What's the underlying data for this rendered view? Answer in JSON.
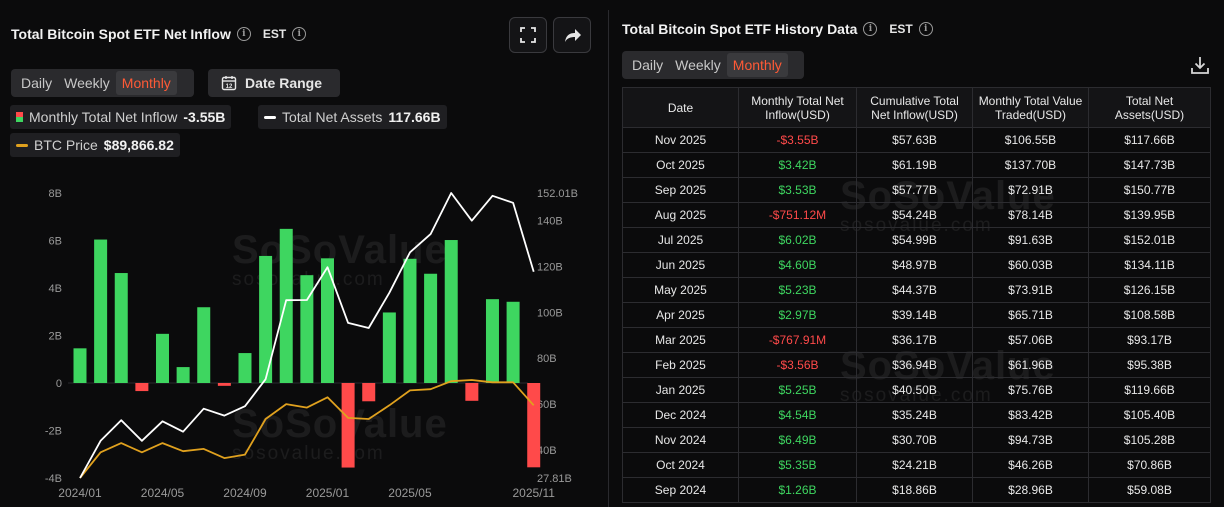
{
  "left_panel": {
    "title": "Total Bitcoin Spot ETF Net Inflow",
    "timezone": "EST",
    "tabs": [
      {
        "label": "Daily",
        "active": false
      },
      {
        "label": "Weekly",
        "active": false
      },
      {
        "label": "Monthly",
        "active": true
      }
    ],
    "date_range_label": "Date Range",
    "legend": {
      "inflow_label": "Monthly Total Net Inflow",
      "inflow_value": "-3.55B",
      "assets_label": "Total Net Assets",
      "assets_value": "117.66B",
      "btc_label": "BTC Price",
      "btc_value": "$89,866.82"
    },
    "watermark": {
      "brand": "SoSoValue",
      "domain": "sosovalue.com"
    }
  },
  "chart_data": {
    "type": "bar",
    "categories": [
      "2024/01",
      "2024/02",
      "2024/03",
      "2024/04",
      "2024/05",
      "2024/06",
      "2024/07",
      "2024/08",
      "2024/09",
      "2024/10",
      "2024/11",
      "2024/12",
      "2025/01",
      "2025/02",
      "2025/03",
      "2025/04",
      "2025/05",
      "2025/06",
      "2025/07",
      "2025/08",
      "2025/09",
      "2025/10",
      "2025/11"
    ],
    "x_tick_labels": [
      "2024/01",
      "2024/05",
      "2024/09",
      "2025/01",
      "2025/05",
      "2025/11"
    ],
    "series": [
      {
        "name": "Monthly Total Net Inflow",
        "axis": "left",
        "kind": "bar",
        "values": [
          1.46,
          6.04,
          4.63,
          -0.34,
          2.07,
          0.67,
          3.19,
          -0.12,
          1.26,
          5.35,
          6.49,
          4.54,
          5.25,
          -3.56,
          -0.77,
          2.97,
          5.23,
          4.6,
          6.02,
          -0.75,
          3.53,
          3.42,
          -3.55
        ]
      },
      {
        "name": "Total Net Assets",
        "axis": "right",
        "kind": "line",
        "values": [
          27.81,
          44.0,
          53.0,
          44.0,
          52.5,
          48.0,
          58.0,
          55.0,
          59.08,
          70.86,
          105.28,
          105.4,
          119.66,
          95.38,
          93.17,
          108.58,
          126.15,
          134.11,
          152.01,
          139.95,
          150.77,
          147.73,
          117.66
        ]
      },
      {
        "name": "BTC Price",
        "axis": "right",
        "kind": "line",
        "color": "#e0a11e",
        "values": [
          27.81,
          39.0,
          43.0,
          39.0,
          43.0,
          39.5,
          40.5,
          36.5,
          38.0,
          53.5,
          60.0,
          58.5,
          63.0,
          54.0,
          53.5,
          59.5,
          66.0,
          66.5,
          70.0,
          70.5,
          69.5,
          69.5,
          59.5
        ]
      }
    ],
    "y_left": {
      "ticks": [
        "8B",
        "6B",
        "4B",
        "2B",
        "0",
        "-2B",
        "-4B"
      ],
      "range": [
        -4,
        8
      ]
    },
    "y_right": {
      "ticks": [
        "152.01B",
        "140B",
        "120B",
        "100B",
        "80B",
        "60B",
        "40B",
        "27.81B"
      ],
      "range": [
        27.81,
        152.01
      ]
    },
    "colors": {
      "positive": "#3ed660",
      "negative": "#ff4a4a",
      "assets_line": "#ffffff",
      "btc_line": "#e0a11e"
    }
  },
  "right_panel": {
    "title": "Total Bitcoin Spot ETF History Data",
    "timezone": "EST",
    "tabs": [
      {
        "label": "Daily",
        "active": false
      },
      {
        "label": "Weekly",
        "active": false
      },
      {
        "label": "Monthly",
        "active": true
      }
    ],
    "table": {
      "headers": [
        "Date",
        "Monthly Total Net Inflow(USD)",
        "Cumulative Total Net Inflow(USD)",
        "Monthly Total Value Traded(USD)",
        "Total Net Assets(USD)"
      ],
      "rows": [
        [
          "Nov 2025",
          "-$3.55B",
          "$57.63B",
          "$106.55B",
          "$117.66B"
        ],
        [
          "Oct 2025",
          "$3.42B",
          "$61.19B",
          "$137.70B",
          "$147.73B"
        ],
        [
          "Sep 2025",
          "$3.53B",
          "$57.77B",
          "$72.91B",
          "$150.77B"
        ],
        [
          "Aug 2025",
          "-$751.12M",
          "$54.24B",
          "$78.14B",
          "$139.95B"
        ],
        [
          "Jul 2025",
          "$6.02B",
          "$54.99B",
          "$91.63B",
          "$152.01B"
        ],
        [
          "Jun 2025",
          "$4.60B",
          "$48.97B",
          "$60.03B",
          "$134.11B"
        ],
        [
          "May 2025",
          "$5.23B",
          "$44.37B",
          "$73.91B",
          "$126.15B"
        ],
        [
          "Apr 2025",
          "$2.97B",
          "$39.14B",
          "$65.71B",
          "$108.58B"
        ],
        [
          "Mar 2025",
          "-$767.91M",
          "$36.17B",
          "$57.06B",
          "$93.17B"
        ],
        [
          "Feb 2025",
          "-$3.56B",
          "$36.94B",
          "$61.96B",
          "$95.38B"
        ],
        [
          "Jan 2025",
          "$5.25B",
          "$40.50B",
          "$75.76B",
          "$119.66B"
        ],
        [
          "Dec 2024",
          "$4.54B",
          "$35.24B",
          "$83.42B",
          "$105.40B"
        ],
        [
          "Nov 2024",
          "$6.49B",
          "$30.70B",
          "$94.73B",
          "$105.28B"
        ],
        [
          "Oct 2024",
          "$5.35B",
          "$24.21B",
          "$46.26B",
          "$70.86B"
        ],
        [
          "Sep 2024",
          "$1.26B",
          "$18.86B",
          "$28.96B",
          "$59.08B"
        ]
      ]
    }
  },
  "icons": {
    "fullscreen": "fullscreen-icon",
    "share": "share-icon",
    "download": "download-icon",
    "calendar": "calendar-icon",
    "info": "info-icon"
  }
}
